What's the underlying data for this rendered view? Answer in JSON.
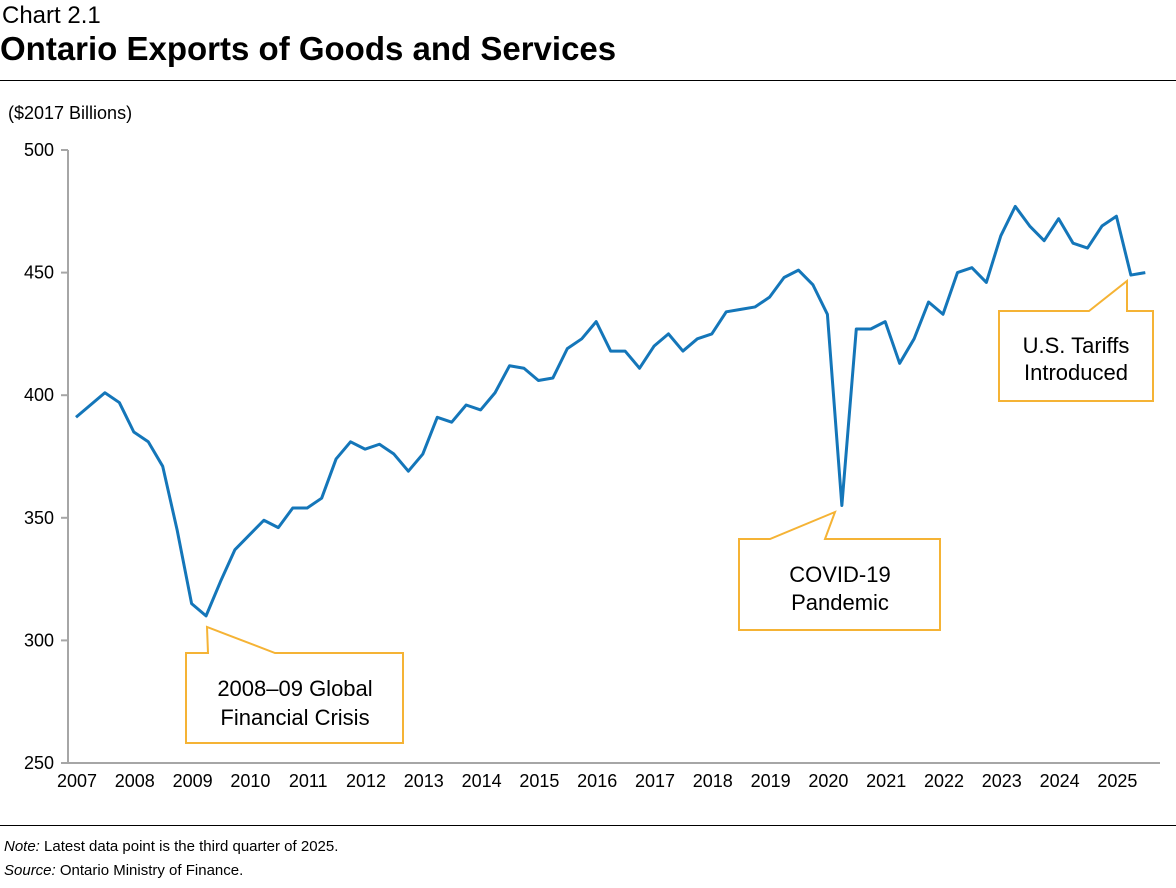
{
  "header": {
    "chart_label": "Chart 2.1",
    "title": "Ontario Exports of Goods and Services"
  },
  "footer": {
    "note_label": "Note:",
    "note_text": " Latest data point is the third quarter of 2025.",
    "source_label": "Source:",
    "source_text": " Ontario Ministry of Finance."
  },
  "colors": {
    "line": "#1476b9",
    "callout": "#f5b335",
    "axis": "#a6a6a6"
  },
  "chart_data": {
    "type": "line",
    "title": "Ontario Exports of Goods and Services",
    "ylabel": "($2017 Billions)",
    "xlabel": "",
    "ylim": [
      250,
      500
    ],
    "yticks": [
      250,
      300,
      350,
      400,
      450,
      500
    ],
    "xtick_labels": [
      "2007",
      "2008",
      "2009",
      "2010",
      "2011",
      "2012",
      "2013",
      "2014",
      "2015",
      "2016",
      "2017",
      "2018",
      "2019",
      "2020",
      "2021",
      "2022",
      "2023",
      "2024",
      "2025"
    ],
    "frequency": "quarterly",
    "start": "2007Q1",
    "end": "2025Q3",
    "grid": false,
    "series": [
      {
        "values": [
          391,
          396,
          401,
          397,
          385,
          381,
          371,
          345,
          315,
          310,
          324,
          337,
          343,
          349,
          346,
          354,
          354,
          358,
          374,
          381,
          378,
          380,
          376,
          369,
          376,
          391,
          389,
          396,
          394,
          401,
          412,
          411,
          406,
          407,
          419,
          423,
          430,
          418,
          418,
          411,
          420,
          425,
          418,
          423,
          425,
          434,
          435,
          436,
          440,
          448,
          451,
          445,
          433,
          355,
          427,
          427,
          430,
          413,
          423,
          438,
          433,
          450,
          452,
          446,
          465,
          477,
          469,
          463,
          472,
          462,
          460,
          469,
          473,
          449,
          450
        ]
      }
    ],
    "annotations": [
      {
        "text": "2008–09 Global Financial Crisis",
        "line1": "2008–09 Global",
        "line2": "Financial Crisis",
        "points_to": "2009Q2"
      },
      {
        "text": "COVID-19 Pandemic",
        "line1": "COVID-19",
        "line2": "Pandemic",
        "points_to": "2020Q2"
      },
      {
        "text": "U.S. Tariffs Introduced",
        "line1": "U.S. Tariffs",
        "line2": "Introduced",
        "points_to": "2025Q2"
      }
    ]
  }
}
